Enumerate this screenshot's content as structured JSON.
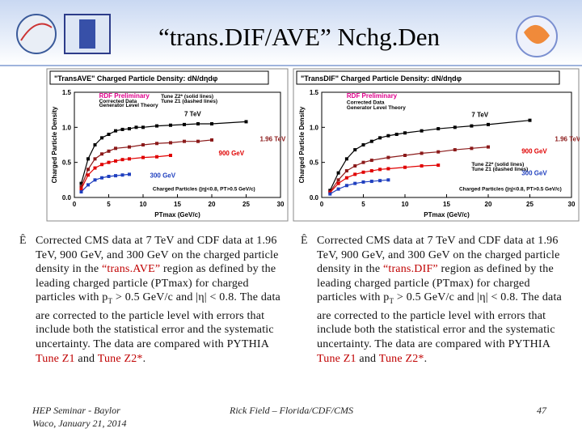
{
  "header": {
    "title": "“trans.DIF/AVE” Nchg.Den"
  },
  "chart_data": [
    {
      "type": "line",
      "title": "\"TransAVE\" Charged Particle Density: dN/dηdφ",
      "x_label": "PTmax (GeV/c)",
      "y_label": "Charged Particle Density",
      "xlim": [
        0,
        30
      ],
      "xticks": [
        0,
        5,
        10,
        15,
        20,
        25,
        30
      ],
      "ylim": [
        0,
        1.5
      ],
      "yticks": [
        {
          "value": 0,
          "label": "0.0"
        },
        {
          "value": 0.5,
          "label": "0.5"
        },
        {
          "value": 1,
          "label": "1.0"
        },
        {
          "value": 1.5,
          "label": "1.5"
        }
      ],
      "annotations": [
        {
          "text": "RDF Preliminary",
          "color": "#e0008c"
        },
        {
          "text": "Corrected Data",
          "color": "#000"
        },
        {
          "text": "Generator Level Theory",
          "color": "#000"
        },
        {
          "text": "Tune Z2* (solid lines)",
          "color": "#000"
        },
        {
          "text": "Tune Z1 (dashed lines)",
          "color": "#000"
        },
        {
          "text": "Charged Particles (|η|<0.8, PT>0.5 GeV/c)",
          "color": "#000"
        }
      ],
      "series": [
        {
          "name": "7 TeV",
          "color": "#000000",
          "x": [
            1,
            2,
            3,
            4,
            5,
            6,
            7,
            8,
            9,
            10,
            12,
            14,
            16,
            18,
            20,
            25
          ],
          "values": [
            0.2,
            0.55,
            0.75,
            0.85,
            0.9,
            0.95,
            0.97,
            0.98,
            1.0,
            1.0,
            1.02,
            1.03,
            1.04,
            1.05,
            1.05,
            1.08
          ]
        },
        {
          "name": "1.96 TeV",
          "color": "#8b1a1a",
          "x": [
            1,
            2,
            3,
            4,
            5,
            6,
            8,
            10,
            12,
            14,
            16,
            18,
            20
          ],
          "values": [
            0.15,
            0.4,
            0.55,
            0.62,
            0.66,
            0.7,
            0.72,
            0.75,
            0.77,
            0.78,
            0.8,
            0.8,
            0.82
          ]
        },
        {
          "name": "900 GeV",
          "color": "#e00000",
          "x": [
            1,
            2,
            3,
            4,
            5,
            6,
            7,
            8,
            10,
            12,
            14
          ],
          "values": [
            0.12,
            0.32,
            0.42,
            0.47,
            0.5,
            0.52,
            0.54,
            0.55,
            0.57,
            0.58,
            0.6
          ]
        },
        {
          "name": "300 GeV",
          "color": "#1f3fbf",
          "x": [
            1,
            2,
            3,
            4,
            5,
            6,
            7,
            8
          ],
          "values": [
            0.08,
            0.18,
            0.25,
            0.28,
            0.3,
            0.31,
            0.32,
            0.33
          ]
        }
      ]
    },
    {
      "type": "line",
      "title": "\"TransDIF\" Charged Particle Density: dN/dηdφ",
      "x_label": "PTmax (GeV/c)",
      "y_label": "Charged Particle Density",
      "xlim": [
        0,
        30
      ],
      "xticks": [
        0,
        5,
        10,
        15,
        20,
        25,
        30
      ],
      "ylim": [
        0,
        1.5
      ],
      "yticks": [
        {
          "value": 0,
          "label": "0.0"
        },
        {
          "value": 0.5,
          "label": "0.5"
        },
        {
          "value": 1,
          "label": "1.0"
        },
        {
          "value": 1.5,
          "label": "1.5"
        }
      ],
      "annotations": [
        {
          "text": "RDF Preliminary",
          "color": "#e0008c"
        },
        {
          "text": "Corrected Data",
          "color": "#000"
        },
        {
          "text": "Generator Level Theory",
          "color": "#000"
        },
        {
          "text": "Tune Z2* (solid lines)",
          "color": "#000"
        },
        {
          "text": "Tune Z1 (dashed lines)",
          "color": "#000"
        },
        {
          "text": "Charged Particles (|η|<0.8, PT>0.5 GeV/c)",
          "color": "#000"
        }
      ],
      "series": [
        {
          "name": "7 TeV",
          "color": "#000000",
          "x": [
            1,
            2,
            3,
            4,
            5,
            6,
            7,
            8,
            9,
            10,
            12,
            14,
            16,
            18,
            20,
            25
          ],
          "values": [
            0.1,
            0.35,
            0.55,
            0.68,
            0.75,
            0.8,
            0.85,
            0.88,
            0.9,
            0.92,
            0.95,
            0.98,
            1.0,
            1.02,
            1.04,
            1.1
          ]
        },
        {
          "name": "1.96 TeV",
          "color": "#8b1a1a",
          "x": [
            1,
            2,
            3,
            4,
            5,
            6,
            8,
            10,
            12,
            14,
            16,
            18,
            20
          ],
          "values": [
            0.08,
            0.25,
            0.38,
            0.45,
            0.5,
            0.53,
            0.57,
            0.6,
            0.63,
            0.65,
            0.68,
            0.7,
            0.72
          ]
        },
        {
          "name": "900 GeV",
          "color": "#e00000",
          "x": [
            1,
            2,
            3,
            4,
            5,
            6,
            7,
            8,
            10,
            12,
            14
          ],
          "values": [
            0.07,
            0.2,
            0.28,
            0.33,
            0.36,
            0.38,
            0.4,
            0.41,
            0.43,
            0.45,
            0.46
          ]
        },
        {
          "name": "300 GeV",
          "color": "#1f3fbf",
          "x": [
            1,
            2,
            3,
            4,
            5,
            6,
            7,
            8
          ],
          "values": [
            0.05,
            0.12,
            0.17,
            0.2,
            0.22,
            0.23,
            0.24,
            0.25
          ]
        }
      ]
    }
  ],
  "bullets": [
    {
      "bullet": "Ê",
      "segments": [
        {
          "text": "Corrected CMS data at 7 TeV and CDF data at 1.96 TeV, 900 GeV, and 300 GeV on the charged particle density in the "
        },
        {
          "text": "“trans.AVE”",
          "color": "#c00000"
        },
        {
          "text": " region as defined by the leading charged particle (PTmax) for charged particles with p"
        },
        {
          "text": "T",
          "sub": true
        },
        {
          "text": " > 0.5 GeV/c and |η| < 0.8. The data are corrected to the particle level with errors that include both the statistical error and the systematic uncertainty. The data are compared with PYTHIA "
        },
        {
          "text": "Tune Z1",
          "color": "#c00000"
        },
        {
          "text": " and "
        },
        {
          "text": "Tune Z2*",
          "color": "#c00000"
        },
        {
          "text": "."
        }
      ]
    },
    {
      "bullet": "Ê",
      "segments": [
        {
          "text": "Corrected CMS data at 7 TeV and CDF data at 1.96 TeV, 900 GeV, and 300 GeV on the charged particle density in the "
        },
        {
          "text": "“trans.DIF”",
          "color": "#c00000"
        },
        {
          "text": " region as defined by the leading charged particle (PTmax) for charged particles with p"
        },
        {
          "text": "T",
          "sub": true
        },
        {
          "text": " > 0.5 GeV/c and |η| < 0.8. The data are corrected to the particle level with errors that include both the statistical error and the systematic uncertainty. The data are compared with PYTHIA "
        },
        {
          "text": "Tune Z1",
          "color": "#c00000"
        },
        {
          "text": " and "
        },
        {
          "text": "Tune Z2*",
          "color": "#c00000"
        },
        {
          "text": "."
        }
      ]
    }
  ],
  "footer": {
    "left": [
      "HEP Seminar - Baylor",
      "Waco, January 21, 2014"
    ],
    "center": "Rick Field – Florida/CDF/CMS",
    "page": "47"
  }
}
